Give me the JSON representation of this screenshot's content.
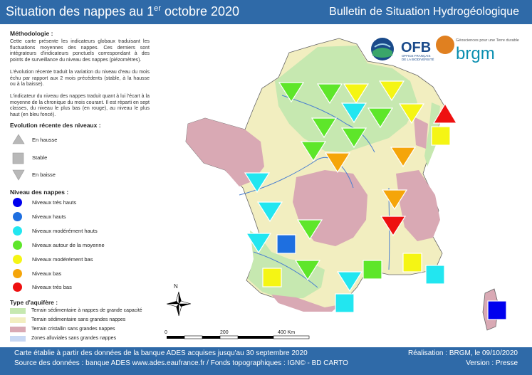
{
  "header": {
    "title_main": "Situation des nappes au 1",
    "title_sup": "er",
    "title_end": " octobre 2020",
    "title_right": "Bulletin de Situation Hydrogéologique"
  },
  "methodology": {
    "title": "Méthodologie :",
    "p1": "Cette carte présente les indicateurs globaux traduisant les fluctuations moyennes des nappes. Ces derniers sont intégrateurs d'indicateurs ponctuels correspondant à des points de surveillance du niveau des nappes (piézomètres).",
    "p2": "L'évolution récente traduit la variation du niveau d'eau du mois échu par rapport aux 2 mois précédents (stable, à la hausse ou à la baisse).",
    "p3": "L'indicateur du niveau des nappes traduit quant à lui l'écart à la moyenne de la chronique du mois courant. Il est réparti en sept classes, du niveau le plus bas (en rouge), au niveau le plus haut (en bleu foncé)."
  },
  "evolution": {
    "title": "Evolution récente des niveaux :",
    "up": "En hausse",
    "stable": "Stable",
    "down": "En baisse"
  },
  "levels": {
    "title": "Niveau des nappes :",
    "items": [
      {
        "label": "Niveaux très hauts",
        "color": "#0000ee"
      },
      {
        "label": "Niveaux hauts",
        "color": "#1e6fe0"
      },
      {
        "label": "Niveaux modérément hauts",
        "color": "#22e6f0"
      },
      {
        "label": "Niveaux autour de la moyenne",
        "color": "#5ee62a"
      },
      {
        "label": "Niveaux modérément bas",
        "color": "#f5f514"
      },
      {
        "label": "Niveaux bas",
        "color": "#f5a50a"
      },
      {
        "label": "Niveaux très bas",
        "color": "#ee1010"
      }
    ]
  },
  "aquifers": {
    "title": "Type d'aquifère :",
    "items": [
      {
        "label": "Terrain sédimentaire à nappes de grande capacité",
        "color": "#c6e8b0"
      },
      {
        "label": "Terrain sédimentaire sans grandes nappes",
        "color": "#f2eec0"
      },
      {
        "label": "Terrain cristallin sans grandes nappes",
        "color": "#d9a9b4"
      },
      {
        "label": "Zones alluviales sans grandes nappes",
        "color": "#c8d8f4"
      }
    ]
  },
  "logos": {
    "ofb": "OFB",
    "ofb_sub1": "OFFICE FRANÇAIS",
    "ofb_sub2": "DE LA BIODIVERSITÉ",
    "brgm": "brgm",
    "brgm_tag": "Géosciences pour une Terre durable"
  },
  "scale": {
    "t0": "0",
    "t1": "200",
    "t2": "400 Km"
  },
  "north": "N",
  "footer": {
    "left1": "Carte établie à partir des données de la banque ADES acquises jusqu'au 30 septembre 2020",
    "left2": "Source des données : banque ADES www.ades.eaufrance.fr / Fonds topographiques : IGN© - BD CARTO",
    "right1": "Réalisation : BRGM, le 09/10/2020",
    "right2": "Version : Presse"
  },
  "colors": {
    "very_high": "#0000ee",
    "high": "#1e6fe0",
    "mod_high": "#22e6f0",
    "average": "#5ee62a",
    "mod_low": "#f5f514",
    "low": "#f5a50a",
    "very_low": "#ee1010",
    "header_bg": "#2f6aa8"
  },
  "indicators": [
    {
      "shape": "down",
      "level": "average"
    },
    {
      "shape": "down",
      "level": "average"
    },
    {
      "shape": "down",
      "level": "mod_low"
    },
    {
      "shape": "down",
      "level": "mod_low"
    },
    {
      "shape": "down",
      "level": "mod_low"
    },
    {
      "shape": "down",
      "level": "mod_high"
    },
    {
      "shape": "down",
      "level": "average"
    },
    {
      "shape": "down",
      "level": "average"
    },
    {
      "shape": "down",
      "level": "average"
    },
    {
      "shape": "down",
      "level": "average"
    },
    {
      "shape": "up",
      "level": "very_low"
    },
    {
      "shape": "square",
      "level": "mod_low"
    },
    {
      "shape": "down",
      "level": "low"
    },
    {
      "shape": "down",
      "level": "low"
    },
    {
      "shape": "down",
      "level": "mod_high"
    },
    {
      "shape": "down",
      "level": "low"
    },
    {
      "shape": "down",
      "level": "very_low"
    },
    {
      "shape": "down",
      "level": "mod_high"
    },
    {
      "shape": "down",
      "level": "average"
    },
    {
      "shape": "down",
      "level": "mod_high"
    },
    {
      "shape": "square",
      "level": "high"
    },
    {
      "shape": "down",
      "level": "average"
    },
    {
      "shape": "square",
      "level": "mod_low"
    },
    {
      "shape": "square",
      "level": "average"
    },
    {
      "shape": "down",
      "level": "mod_high"
    },
    {
      "shape": "square",
      "level": "mod_low"
    },
    {
      "shape": "square",
      "level": "mod_high"
    },
    {
      "shape": "square",
      "level": "mod_high"
    },
    {
      "shape": "square",
      "level": "very_high"
    }
  ]
}
